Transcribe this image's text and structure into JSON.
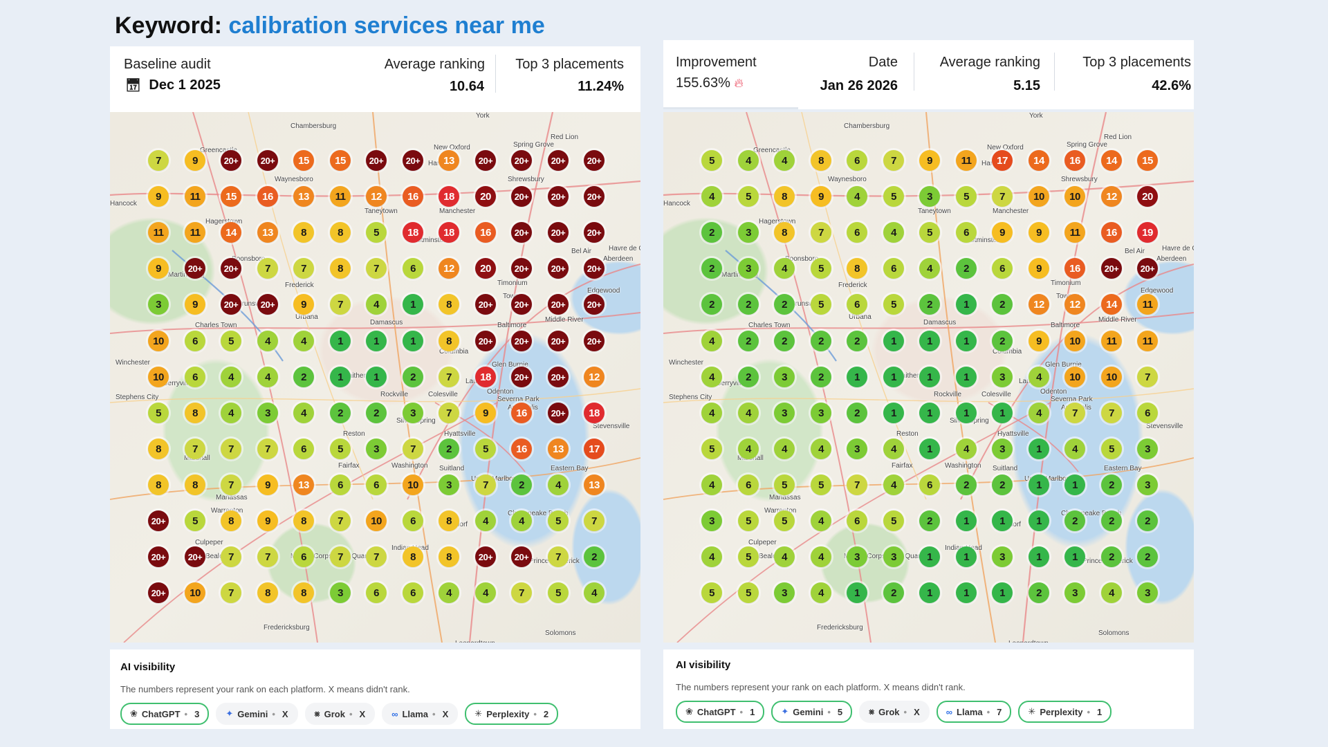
{
  "headline": {
    "prefix": "Keyword:",
    "keyword": "calibration services near me"
  },
  "left": {
    "baseline_label": "Baseline audit",
    "date": "Dec 1 2025",
    "avg_label": "Average ranking",
    "avg_value": "10.64",
    "top3_label": "Top 3 placements",
    "top3_value": "11.24%",
    "grid": [
      [
        "7",
        "9",
        "20+",
        "20+",
        "15",
        "15",
        "20+",
        "20+",
        "13",
        "20+",
        "20+",
        "20+",
        "20+"
      ],
      [
        "9",
        "11",
        "15",
        "16",
        "13",
        "11",
        "12",
        "16",
        "18",
        "20",
        "20+",
        "20+",
        "20+"
      ],
      [
        "11",
        "11",
        "14",
        "13",
        "8",
        "8",
        "5",
        "18",
        "18",
        "16",
        "20+",
        "20+",
        "20+"
      ],
      [
        "9",
        "20+",
        "20+",
        "7",
        "7",
        "8",
        "7",
        "6",
        "12",
        "20",
        "20+",
        "20+",
        "20+"
      ],
      [
        "3",
        "9",
        "20+",
        "20+",
        "9",
        "7",
        "4",
        "1",
        "8",
        "20+",
        "20+",
        "20+",
        "20+"
      ],
      [
        "10",
        "6",
        "5",
        "4",
        "4",
        "1",
        "1",
        "1",
        "8",
        "20+",
        "20+",
        "20+",
        "20+"
      ],
      [
        "10",
        "6",
        "4",
        "4",
        "2",
        "1",
        "1",
        "2",
        "7",
        "18",
        "20+",
        "20+",
        "12"
      ],
      [
        "5",
        "8",
        "4",
        "3",
        "4",
        "2",
        "2",
        "3",
        "7",
        "9",
        "16",
        "20+",
        "18"
      ],
      [
        "8",
        "7",
        "7",
        "7",
        "6",
        "5",
        "3",
        "7",
        "2",
        "5",
        "16",
        "13",
        "17"
      ],
      [
        "8",
        "8",
        "7",
        "9",
        "13",
        "6",
        "6",
        "10",
        "3",
        "7",
        "2",
        "4",
        "13"
      ],
      [
        "20+",
        "5",
        "8",
        "9",
        "8",
        "7",
        "10",
        "6",
        "8",
        "4",
        "4",
        "5",
        "7"
      ],
      [
        "20+",
        "20+",
        "7",
        "7",
        "6",
        "7",
        "7",
        "8",
        "8",
        "20+",
        "20+",
        "7",
        "2"
      ],
      [
        "20+",
        "10",
        "7",
        "8",
        "8",
        "3",
        "6",
        "6",
        "4",
        "4",
        "7",
        "5",
        "4"
      ]
    ],
    "ai_title": "AI visibility",
    "ai_desc": "The numbers represent your rank on each platform. X means didn't rank.",
    "chips": [
      {
        "name": "ChatGPT",
        "value": "3",
        "icon": "chatgpt-icon",
        "ranked": true
      },
      {
        "name": "Gemini",
        "value": "X",
        "icon": "gemini-icon",
        "ranked": false
      },
      {
        "name": "Grok",
        "value": "X",
        "icon": "grok-icon",
        "ranked": false
      },
      {
        "name": "Llama",
        "value": "X",
        "icon": "meta-icon",
        "ranked": false
      },
      {
        "name": "Perplexity",
        "value": "2",
        "icon": "perplexity-icon",
        "ranked": true
      }
    ]
  },
  "right": {
    "improvement_label": "Improvement",
    "improvement_value": "155.63%",
    "date_label": "Date",
    "date": "Jan 26 2026",
    "avg_label": "Average ranking",
    "avg_value": "5.15",
    "top3_label": "Top 3 placements",
    "top3_value": "42.6%",
    "grid": [
      [
        "5",
        "4",
        "4",
        "8",
        "6",
        "7",
        "9",
        "11",
        "17",
        "14",
        "16",
        "14",
        "15"
      ],
      [
        "4",
        "5",
        "8",
        "9",
        "4",
        "5",
        "3",
        "5",
        "7",
        "10",
        "10",
        "12",
        "20"
      ],
      [
        "2",
        "3",
        "8",
        "7",
        "6",
        "4",
        "5",
        "6",
        "9",
        "9",
        "11",
        "16",
        "19"
      ],
      [
        "2",
        "3",
        "4",
        "5",
        "8",
        "6",
        "4",
        "2",
        "6",
        "9",
        "16",
        "20+",
        "20+"
      ],
      [
        "2",
        "2",
        "2",
        "5",
        "6",
        "5",
        "2",
        "1",
        "2",
        "12",
        "12",
        "14",
        "11"
      ],
      [
        "4",
        "2",
        "2",
        "2",
        "2",
        "1",
        "1",
        "1",
        "2",
        "9",
        "10",
        "11",
        "11"
      ],
      [
        "4",
        "2",
        "3",
        "2",
        "1",
        "1",
        "1",
        "1",
        "3",
        "4",
        "10",
        "10",
        "7"
      ],
      [
        "4",
        "4",
        "3",
        "3",
        "2",
        "1",
        "1",
        "1",
        "1",
        "4",
        "7",
        "7",
        "6"
      ],
      [
        "5",
        "4",
        "4",
        "4",
        "3",
        "4",
        "1",
        "4",
        "3",
        "1",
        "4",
        "5",
        "3"
      ],
      [
        "4",
        "6",
        "5",
        "5",
        "7",
        "4",
        "6",
        "2",
        "2",
        "1",
        "1",
        "2",
        "3"
      ],
      [
        "3",
        "5",
        "5",
        "4",
        "6",
        "5",
        "2",
        "1",
        "1",
        "1",
        "2",
        "2",
        "2"
      ],
      [
        "4",
        "5",
        "4",
        "4",
        "3",
        "3",
        "1",
        "1",
        "3",
        "1",
        "1",
        "2",
        "2"
      ],
      [
        "5",
        "5",
        "3",
        "4",
        "1",
        "2",
        "1",
        "1",
        "1",
        "2",
        "3",
        "4",
        "3"
      ]
    ],
    "ai_title": "AI visibility",
    "ai_desc": "The numbers represent your rank on each platform. X means didn't rank.",
    "chips": [
      {
        "name": "ChatGPT",
        "value": "1",
        "icon": "chatgpt-icon",
        "ranked": true
      },
      {
        "name": "Gemini",
        "value": "5",
        "icon": "gemini-icon",
        "ranked": true
      },
      {
        "name": "Grok",
        "value": "X",
        "icon": "grok-icon",
        "ranked": false
      },
      {
        "name": "Llama",
        "value": "7",
        "icon": "meta-icon",
        "ranked": true
      },
      {
        "name": "Perplexity",
        "value": "1",
        "icon": "perplexity-icon",
        "ranked": true
      }
    ]
  },
  "places": [
    "Chambersburg",
    "York",
    "Red Lion",
    "Greencastle",
    "Waynesboro",
    "Hanover",
    "New Oxford",
    "Spring Grove",
    "Shrewsbury",
    "Hancock",
    "Hagerstown",
    "Taneytown",
    "Manchester",
    "Westminster",
    "Bel Air",
    "Aberdeen",
    "Havre de Grace",
    "Boonsboro",
    "Martinsburg",
    "Frederick",
    "Timonium",
    "Towson",
    "Edgewood",
    "Middle River",
    "Charles Town",
    "Brunswick",
    "Urbana",
    "Damascus",
    "Baltimore",
    "Columbia",
    "Glen Burnie",
    "Odenton",
    "Winchester",
    "Berryville",
    "Stephens City",
    "Gaithersburg",
    "Rockville",
    "Colesville",
    "Laurel",
    "Severna Park",
    "Annapolis",
    "Stevensville",
    "Reston",
    "Silver Spring",
    "Hyattsville",
    "Fairfax",
    "Washington",
    "Suitland",
    "Upper Marlboro",
    "Marshall",
    "Manassas",
    "Warrenton",
    "Waldorf",
    "Chesapeake Beach",
    "Indian Head",
    "Prince Frederick",
    "Bealeton",
    "Culpeper",
    "Fredericksburg",
    "Solomons",
    "Leonardtown",
    "Eastern Bay",
    "Marine Corps Base Quantico"
  ]
}
